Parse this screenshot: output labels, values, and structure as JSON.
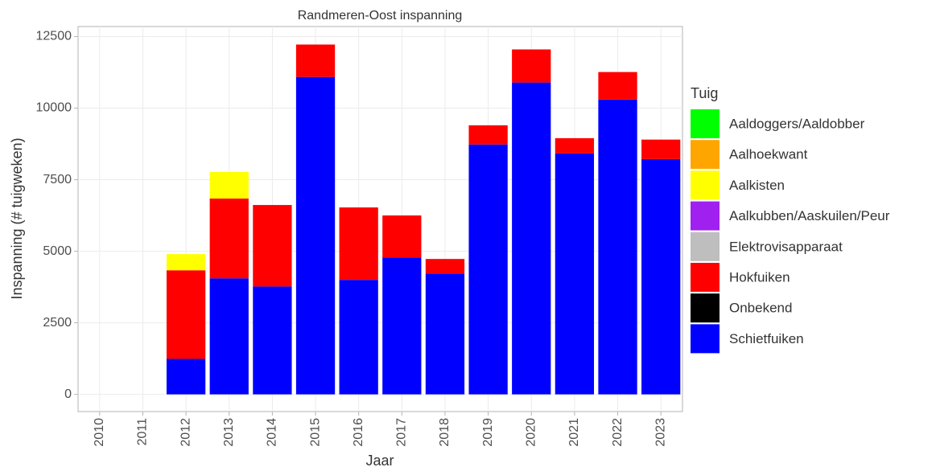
{
  "chart_data": {
    "type": "stacked_bar",
    "title": "Randmeren-Oost inspanning",
    "x_label": "Jaar",
    "y_label": "Inspanning (# tuigweken)",
    "legend_title": "Tuig",
    "categories": [
      "2010",
      "2011",
      "2012",
      "2013",
      "2014",
      "2015",
      "2016",
      "2017",
      "2018",
      "2019",
      "2020",
      "2021",
      "2022",
      "2023"
    ],
    "series": [
      {
        "name": "Schietfuiken",
        "color": "#0000ff",
        "values": [
          null,
          null,
          1240,
          4055,
          3770,
          11090,
          4000,
          4785,
          4220,
          8730,
          10895,
          8420,
          10300,
          8220
        ]
      },
      {
        "name": "Onbekend",
        "color": "#000000",
        "values": [
          null,
          null,
          null,
          null,
          null,
          null,
          null,
          null,
          null,
          null,
          null,
          null,
          null,
          null
        ]
      },
      {
        "name": "Hokfuiken",
        "color": "#ff0000",
        "values": [
          null,
          null,
          3095,
          2785,
          2845,
          1130,
          2530,
          1465,
          510,
          670,
          1155,
          530,
          960,
          680
        ]
      },
      {
        "name": "Elektrovisapparaat",
        "color": "#bebebe",
        "values": [
          null,
          null,
          null,
          null,
          null,
          null,
          null,
          null,
          null,
          null,
          null,
          null,
          null,
          null
        ]
      },
      {
        "name": "Aalkubben/Aaskuilen/Peur",
        "color": "#a020f0",
        "values": [
          null,
          null,
          null,
          null,
          null,
          null,
          null,
          null,
          null,
          null,
          null,
          null,
          null,
          null
        ]
      },
      {
        "name": "Aalkisten",
        "color": "#ffff00",
        "values": [
          null,
          null,
          565,
          930,
          null,
          null,
          null,
          null,
          null,
          null,
          null,
          null,
          null,
          null
        ]
      },
      {
        "name": "Aalhoekwant",
        "color": "#ffa500",
        "values": [
          null,
          null,
          null,
          null,
          null,
          null,
          null,
          null,
          null,
          null,
          null,
          null,
          null,
          null
        ]
      },
      {
        "name": "Aaldoggers/Aaldobber",
        "color": "#00ff00",
        "values": [
          null,
          null,
          null,
          null,
          null,
          null,
          null,
          null,
          null,
          null,
          null,
          null,
          null,
          null
        ]
      }
    ],
    "ylim": [
      -600,
      12850
    ],
    "yticks": [
      0,
      2500,
      5000,
      7500,
      10000,
      12500
    ],
    "grid": true,
    "legend": "right"
  }
}
